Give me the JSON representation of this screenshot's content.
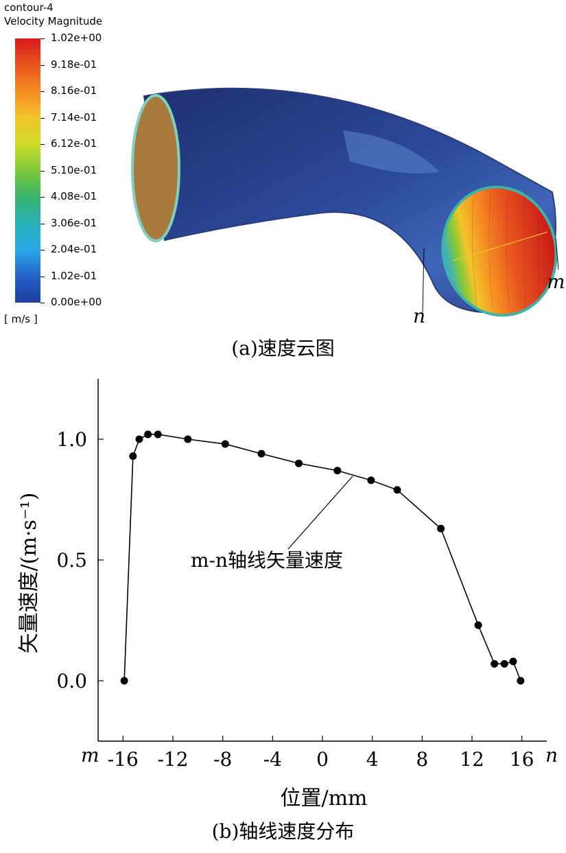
{
  "figure_a": {
    "colorbar": {
      "name": "contour-4",
      "quantity": "Velocity Magnitude",
      "unit": "[ m/s ]",
      "ticks": [
        "1.02e+00",
        "9.18e-01",
        "8.16e-01",
        "7.14e-01",
        "6.12e-01",
        "5.10e-01",
        "4.08e-01",
        "3.06e-01",
        "2.04e-01",
        "1.02e-01",
        "0.00e+00"
      ],
      "colors": [
        "#d7191c",
        "#e8551f",
        "#f58a22",
        "#f2c52a",
        "#cfdc2a",
        "#7ec83a",
        "#38b36a",
        "#28b0b8",
        "#2aa9e6",
        "#2460c9",
        "#1f3f9e"
      ]
    },
    "point_labels": {
      "n": "n",
      "m": "m"
    },
    "caption": "(a)速度云图"
  },
  "figure_b": {
    "caption": "(b)轴线速度分布",
    "annotation": "m-n轴线矢量速度",
    "axis_end_labels": {
      "left": "m",
      "right": "n"
    }
  },
  "chart_data": {
    "type": "line",
    "xlabel": "位置/mm",
    "ylabel": "矢量速度/(m·s⁻¹)",
    "xlim": [
      -18,
      18
    ],
    "ylim": [
      -0.25,
      1.25
    ],
    "xticks": [
      -16,
      -12,
      -8,
      -4,
      0,
      4,
      8,
      12,
      16
    ],
    "yticks": [
      0.0,
      0.5,
      1.0
    ],
    "ytick_labels": [
      "0.0",
      "0.5",
      "1.0"
    ],
    "grid": false,
    "series": [
      {
        "x": [
          -15.9,
          -15.2,
          -14.7,
          -14.0,
          -13.2,
          -10.8,
          -7.8,
          -4.9,
          -1.9,
          1.2,
          3.9,
          6.0,
          9.5,
          12.5,
          13.8,
          14.6,
          15.3,
          15.9
        ],
        "y": [
          0.0,
          0.93,
          1.0,
          1.02,
          1.02,
          1.0,
          0.98,
          0.94,
          0.9,
          0.87,
          0.83,
          0.79,
          0.63,
          0.23,
          0.07,
          0.07,
          0.08,
          0.0
        ]
      }
    ]
  }
}
